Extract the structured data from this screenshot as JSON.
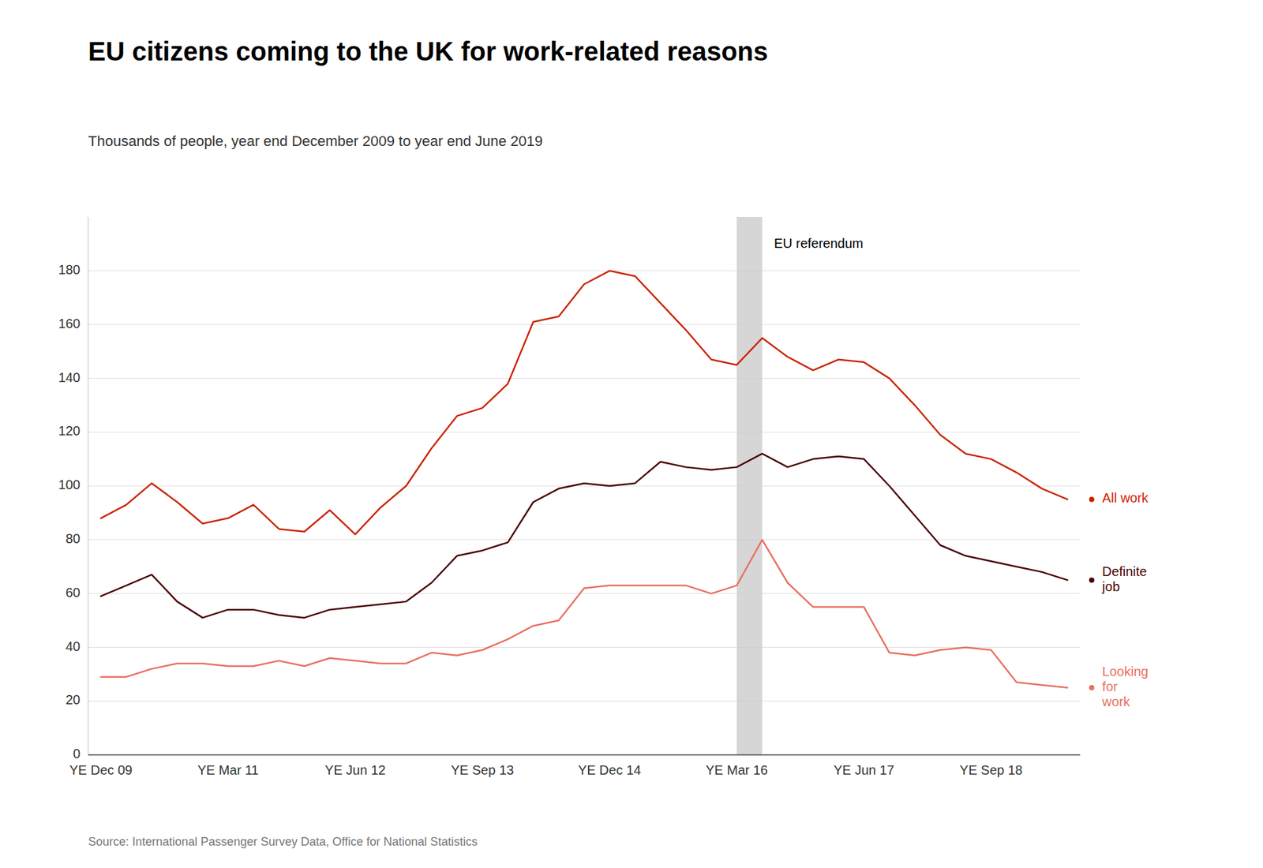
{
  "chart_data": {
    "type": "line",
    "title": "EU citizens coming to the UK for work-related reasons",
    "subtitle": "Thousands of people, year end December 2009 to year end June 2019",
    "source": "Source: International Passenger Survey Data, Office for National Statistics",
    "annotations": [
      {
        "text": "EU referendum",
        "x": 25.5
      }
    ],
    "categories": [
      "YE Dec 09",
      null,
      null,
      null,
      null,
      "YE Mar 11",
      null,
      null,
      null,
      null,
      "YE Jun 12",
      null,
      null,
      null,
      null,
      "YE Sep 13",
      null,
      null,
      null,
      null,
      "YE Dec 14",
      null,
      null,
      null,
      null,
      "YE Mar 16",
      null,
      null,
      null,
      null,
      "YE Jun 17",
      null,
      null,
      null,
      null,
      "YE Sep 18",
      null,
      null,
      null
    ],
    "series": [
      {
        "name": "All work",
        "color": "#cc2200",
        "values": [
          88,
          93,
          101,
          94,
          86,
          88,
          93,
          84,
          83,
          91,
          82,
          92,
          100,
          114,
          126,
          129,
          138,
          161,
          163,
          175,
          180,
          178,
          168,
          158,
          147,
          145,
          155,
          148,
          143,
          147,
          146,
          140,
          130,
          119,
          112,
          110,
          105,
          99,
          95
        ]
      },
      {
        "name": "Definite\njob",
        "color": "#4a0000",
        "values": [
          59,
          63,
          67,
          57,
          51,
          54,
          54,
          52,
          51,
          54,
          55,
          56,
          57,
          64,
          74,
          76,
          79,
          94,
          99,
          101,
          100,
          101,
          109,
          107,
          106,
          107,
          112,
          107,
          110,
          111,
          110,
          100,
          89,
          78,
          74,
          72,
          70,
          68,
          65
        ]
      },
      {
        "name": "Looking\nfor\nwork",
        "color": "#e87060",
        "values": [
          29,
          29,
          32,
          34,
          34,
          33,
          33,
          35,
          33,
          36,
          35,
          34,
          34,
          38,
          37,
          39,
          43,
          48,
          50,
          62,
          63,
          63,
          63,
          63,
          60,
          63,
          80,
          64,
          55,
          55,
          55,
          38,
          37,
          39,
          40,
          39,
          27,
          26,
          25
        ]
      }
    ],
    "ylim": [
      0,
      200
    ],
    "yticks": [
      0,
      20,
      40,
      60,
      80,
      100,
      120,
      140,
      160,
      180
    ],
    "grid": true
  }
}
